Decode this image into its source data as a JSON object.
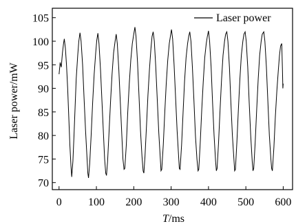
{
  "chart_data": {
    "type": "line",
    "title": "",
    "xlabel": "T/ms",
    "xlabel_parts": {
      "symbol": "T",
      "unit": "/ms"
    },
    "ylabel": "Laser power/mW",
    "xlim": [
      -18,
      625
    ],
    "ylim": [
      68.5,
      107
    ],
    "x_ticks": [
      0,
      100,
      200,
      300,
      400,
      500,
      600
    ],
    "y_ticks": [
      70,
      75,
      80,
      85,
      90,
      95,
      100,
      105
    ],
    "grid": false,
    "legend": {
      "position": "top-right",
      "entries": [
        "Laser power"
      ]
    },
    "series": [
      {
        "name": "Laser power",
        "color": "#000000",
        "points": [
          [
            0,
            93.0
          ],
          [
            3,
            95.5
          ],
          [
            6,
            94.5
          ],
          [
            9,
            97.5
          ],
          [
            12,
            99.5
          ],
          [
            14,
            100.5
          ],
          [
            17,
            98.5
          ],
          [
            20,
            95.0
          ],
          [
            23,
            90.0
          ],
          [
            26,
            84.0
          ],
          [
            29,
            78.0
          ],
          [
            32,
            73.5
          ],
          [
            34,
            71.2
          ],
          [
            37,
            74.5
          ],
          [
            40,
            80.0
          ],
          [
            43,
            86.0
          ],
          [
            46,
            92.0
          ],
          [
            50,
            97.0
          ],
          [
            53,
            100.0
          ],
          [
            56,
            101.8
          ],
          [
            59,
            100.0
          ],
          [
            63,
            95.0
          ],
          [
            67,
            88.0
          ],
          [
            71,
            81.0
          ],
          [
            75,
            75.0
          ],
          [
            77,
            72.0
          ],
          [
            79,
            71.0
          ],
          [
            82,
            74.0
          ],
          [
            86,
            80.0
          ],
          [
            90,
            87.0
          ],
          [
            94,
            93.0
          ],
          [
            98,
            97.5
          ],
          [
            101,
            100.2
          ],
          [
            104,
            101.7
          ],
          [
            107,
            99.5
          ],
          [
            111,
            94.0
          ],
          [
            115,
            87.0
          ],
          [
            119,
            80.0
          ],
          [
            122,
            75.0
          ],
          [
            125,
            72.0
          ],
          [
            127,
            71.5
          ],
          [
            130,
            74.5
          ],
          [
            134,
            81.0
          ],
          [
            138,
            87.5
          ],
          [
            142,
            93.0
          ],
          [
            146,
            97.5
          ],
          [
            150,
            100.0
          ],
          [
            153,
            101.5
          ],
          [
            156,
            99.5
          ],
          [
            160,
            94.0
          ],
          [
            164,
            87.0
          ],
          [
            168,
            80.0
          ],
          [
            171,
            75.0
          ],
          [
            174,
            72.8
          ],
          [
            176,
            73.0
          ],
          [
            180,
            78.0
          ],
          [
            184,
            85.0
          ],
          [
            188,
            91.0
          ],
          [
            192,
            96.0
          ],
          [
            196,
            99.5
          ],
          [
            200,
            101.5
          ],
          [
            203,
            103.0
          ],
          [
            206,
            101.0
          ],
          [
            210,
            95.5
          ],
          [
            214,
            88.5
          ],
          [
            218,
            81.0
          ],
          [
            222,
            75.5
          ],
          [
            225,
            72.5
          ],
          [
            227,
            72.0
          ],
          [
            230,
            75.5
          ],
          [
            234,
            82.0
          ],
          [
            238,
            88.5
          ],
          [
            242,
            94.0
          ],
          [
            246,
            98.5
          ],
          [
            249,
            101.0
          ],
          [
            252,
            102.0
          ],
          [
            255,
            100.0
          ],
          [
            259,
            94.5
          ],
          [
            263,
            87.5
          ],
          [
            267,
            80.5
          ],
          [
            271,
            75.0
          ],
          [
            273,
            72.5
          ],
          [
            275,
            72.8
          ],
          [
            279,
            78.0
          ],
          [
            283,
            85.0
          ],
          [
            287,
            91.0
          ],
          [
            291,
            96.0
          ],
          [
            295,
            99.5
          ],
          [
            298,
            101.0
          ],
          [
            301,
            102.5
          ],
          [
            304,
            100.5
          ],
          [
            308,
            95.0
          ],
          [
            312,
            88.0
          ],
          [
            316,
            81.0
          ],
          [
            320,
            75.5
          ],
          [
            322,
            73.0
          ],
          [
            324,
            72.8
          ],
          [
            328,
            78.0
          ],
          [
            332,
            85.0
          ],
          [
            336,
            91.5
          ],
          [
            340,
            96.5
          ],
          [
            344,
            99.5
          ],
          [
            347,
            101.0
          ],
          [
            350,
            102.0
          ],
          [
            353,
            100.0
          ],
          [
            357,
            94.5
          ],
          [
            361,
            87.5
          ],
          [
            365,
            80.0
          ],
          [
            369,
            75.0
          ],
          [
            372,
            72.5
          ],
          [
            374,
            72.8
          ],
          [
            378,
            78.5
          ],
          [
            382,
            85.5
          ],
          [
            386,
            91.5
          ],
          [
            390,
            96.5
          ],
          [
            394,
            99.5
          ],
          [
            397,
            101.0
          ],
          [
            400,
            102.2
          ],
          [
            403,
            100.0
          ],
          [
            407,
            94.5
          ],
          [
            411,
            87.0
          ],
          [
            415,
            80.0
          ],
          [
            419,
            74.5
          ],
          [
            421,
            72.5
          ],
          [
            423,
            73.0
          ],
          [
            427,
            78.5
          ],
          [
            431,
            85.5
          ],
          [
            435,
            92.0
          ],
          [
            439,
            97.0
          ],
          [
            443,
            100.0
          ],
          [
            446,
            101.5
          ],
          [
            449,
            102.0
          ],
          [
            452,
            100.0
          ],
          [
            456,
            94.5
          ],
          [
            460,
            87.0
          ],
          [
            464,
            80.0
          ],
          [
            468,
            75.0
          ],
          [
            470,
            72.5
          ],
          [
            472,
            72.8
          ],
          [
            476,
            78.5
          ],
          [
            480,
            85.5
          ],
          [
            484,
            92.0
          ],
          [
            488,
            97.0
          ],
          [
            492,
            100.0
          ],
          [
            495,
            101.5
          ],
          [
            498,
            102.0
          ],
          [
            501,
            100.0
          ],
          [
            505,
            94.5
          ],
          [
            509,
            87.0
          ],
          [
            513,
            80.0
          ],
          [
            517,
            74.5
          ],
          [
            519,
            72.5
          ],
          [
            521,
            73.0
          ],
          [
            525,
            78.5
          ],
          [
            529,
            85.5
          ],
          [
            533,
            92.0
          ],
          [
            537,
            97.0
          ],
          [
            541,
            100.0
          ],
          [
            544,
            101.5
          ],
          [
            548,
            102.0
          ],
          [
            551,
            100.0
          ],
          [
            555,
            94.5
          ],
          [
            559,
            87.0
          ],
          [
            563,
            80.0
          ],
          [
            567,
            75.0
          ],
          [
            569,
            73.0
          ],
          [
            571,
            72.5
          ],
          [
            575,
            77.5
          ],
          [
            579,
            84.0
          ],
          [
            583,
            89.5
          ],
          [
            587,
            94.0
          ],
          [
            590,
            97.0
          ],
          [
            593,
            99.0
          ],
          [
            596,
            99.5
          ],
          [
            598,
            94.0
          ],
          [
            599,
            90.0
          ],
          [
            600,
            91.0
          ]
        ]
      }
    ]
  }
}
